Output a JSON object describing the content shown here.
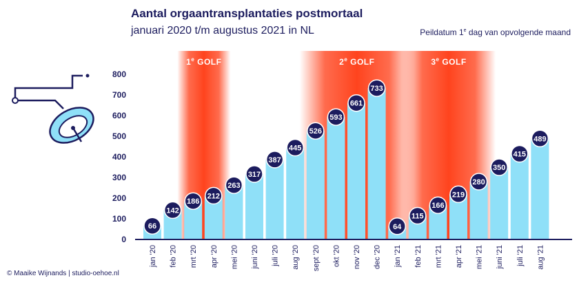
{
  "title": "Aantal orgaantransplantaties postmortaal",
  "subtitle": "januari 2020 t/m augustus 2021 in NL",
  "note": "Peildatum 1e dag van opvolgende maand",
  "credit": "© Maaike Wijnands | studio-oehoe.nl",
  "icon": "operating-lamp-icon",
  "colors": {
    "bar": "#8fe0f8",
    "bubble": "#1c1c5e",
    "text": "#1c1c5e",
    "wave": "#ff3a12",
    "baseline": "#1c1c5e"
  },
  "chart_data": {
    "type": "bar",
    "categories": [
      "jan '20",
      "feb '20",
      "mrt '20",
      "apr '20",
      "mei '20",
      "juni '20",
      "juli '20",
      "aug '20",
      "sept '20",
      "okt '20",
      "nov '20",
      "dec '20",
      "jan '21",
      "feb '21",
      "mrt '21",
      "apr '21",
      "mei '21",
      "juni '21",
      "juli '21",
      "aug '21"
    ],
    "values": [
      66,
      142,
      186,
      212,
      263,
      317,
      387,
      445,
      526,
      593,
      661,
      733,
      64,
      115,
      166,
      219,
      280,
      350,
      415,
      489
    ],
    "ylim": [
      0,
      800
    ],
    "yticks": [
      0,
      100,
      200,
      300,
      400,
      500,
      600,
      700,
      800
    ],
    "data_labels": true,
    "grid": false,
    "annotations": [
      {
        "label": "1e GOLF",
        "from": "mrt '20",
        "to": "apr '20"
      },
      {
        "label": "2e GOLF",
        "from": "sept '20",
        "to": "jan '21"
      },
      {
        "label": "3e GOLF",
        "from": "feb '21",
        "to": "mei '21"
      }
    ]
  }
}
